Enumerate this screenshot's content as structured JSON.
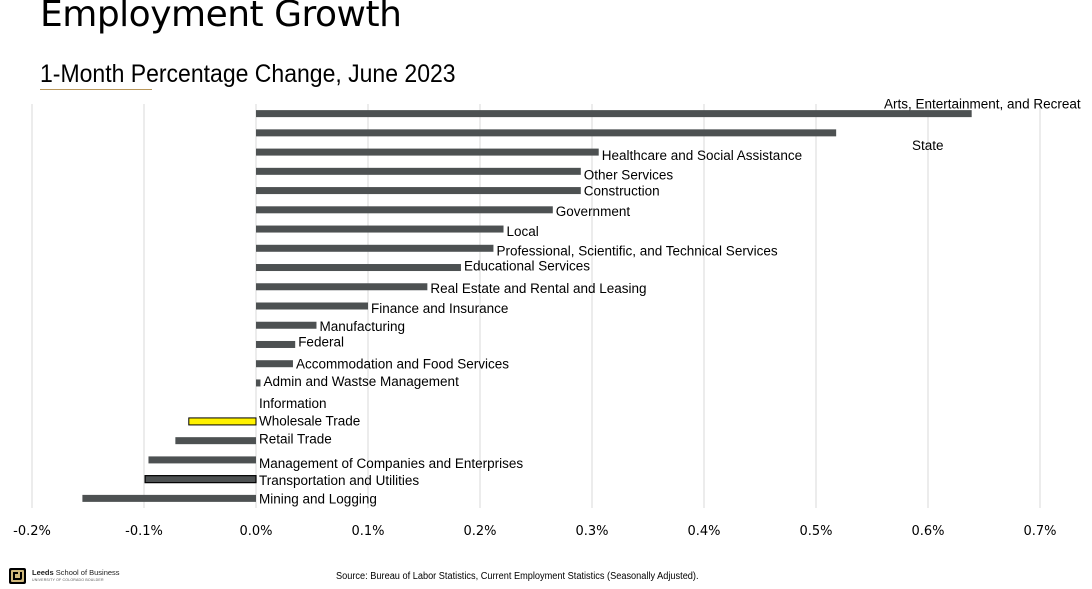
{
  "header": {
    "title": "Employment Growth",
    "subtitle": "1-Month Percentage Change, June 2023"
  },
  "footer": {
    "source": "Source: Bureau of Labor Statistics, Current Employment Statistics (Seasonally Adjusted).",
    "logo_name": "Leeds",
    "logo_rest": " School of Business",
    "logo_sub": "UNIVERSITY OF COLORADO BOULDER"
  },
  "colors": {
    "bar": "#4d5152",
    "highlight_fill": "#fff200",
    "highlight_border": "#000000",
    "grid": "#d9d9d9",
    "accent": "#b9975b"
  },
  "chart_data": {
    "type": "bar",
    "orientation": "horizontal",
    "title": "1-Month Percentage Change, June 2023",
    "xlabel": "",
    "ylabel": "",
    "xlim": [
      -0.2,
      0.7
    ],
    "x_ticks": [
      -0.2,
      -0.1,
      0.0,
      0.1,
      0.2,
      0.3,
      0.4,
      0.5,
      0.6,
      0.7
    ],
    "x_tick_labels": [
      "-0.2%",
      "-0.1%",
      "0.0%",
      "0.1%",
      "0.2%",
      "0.3%",
      "0.4%",
      "0.5%",
      "0.6%",
      "0.7%"
    ],
    "grid": true,
    "unit": "%",
    "categories": [
      "Arts, Entertainment, and Recreation",
      "State",
      "Healthcare and Social Assistance",
      "Other Services",
      "Construction",
      "Government",
      "Local",
      "Professional, Scientific, and Technical Services",
      "Educational Services",
      "Real Estate and Rental and Leasing",
      "Finance and Insurance",
      "Manufacturing",
      "Federal",
      "Accommodation and Food Services",
      "Admin and Wastse Management",
      "Information",
      "Wholesale Trade",
      "Retail Trade",
      "Management of Companies and Enterprises",
      "Transportation and Utilities",
      "Mining and Logging"
    ],
    "visible_labels": [
      "Arts, Entertainment, and Recreat",
      "State",
      "Healthcare and Social Assistance",
      "Other Services",
      "Construction",
      "Government",
      "Local",
      "Professional, Scientific, and Technical Services",
      "Educational Services",
      "Real Estate and Rental and Leasing",
      "Finance and Insurance",
      "Manufacturing",
      "Federal",
      "Accommodation and Food Services",
      "Admin and Wastse Management",
      "Information",
      "Wholesale Trade",
      "Retail Trade",
      "Management of Companies and Enterprises",
      "Transportation and Utilities",
      "Mining and Logging"
    ],
    "values": [
      0.639,
      0.518,
      0.306,
      0.29,
      0.29,
      0.265,
      0.221,
      0.212,
      0.183,
      0.153,
      0.1,
      0.054,
      0.035,
      0.033,
      0.004,
      0.0,
      -0.06,
      -0.072,
      -0.096,
      -0.099,
      -0.155
    ],
    "highlight": [
      "normal",
      "normal",
      "normal",
      "normal",
      "normal",
      "normal",
      "normal",
      "normal",
      "normal",
      "normal",
      "normal",
      "normal",
      "normal",
      "normal",
      "normal",
      "normal",
      "yellow",
      "normal",
      "normal",
      "outlined",
      "normal"
    ]
  }
}
